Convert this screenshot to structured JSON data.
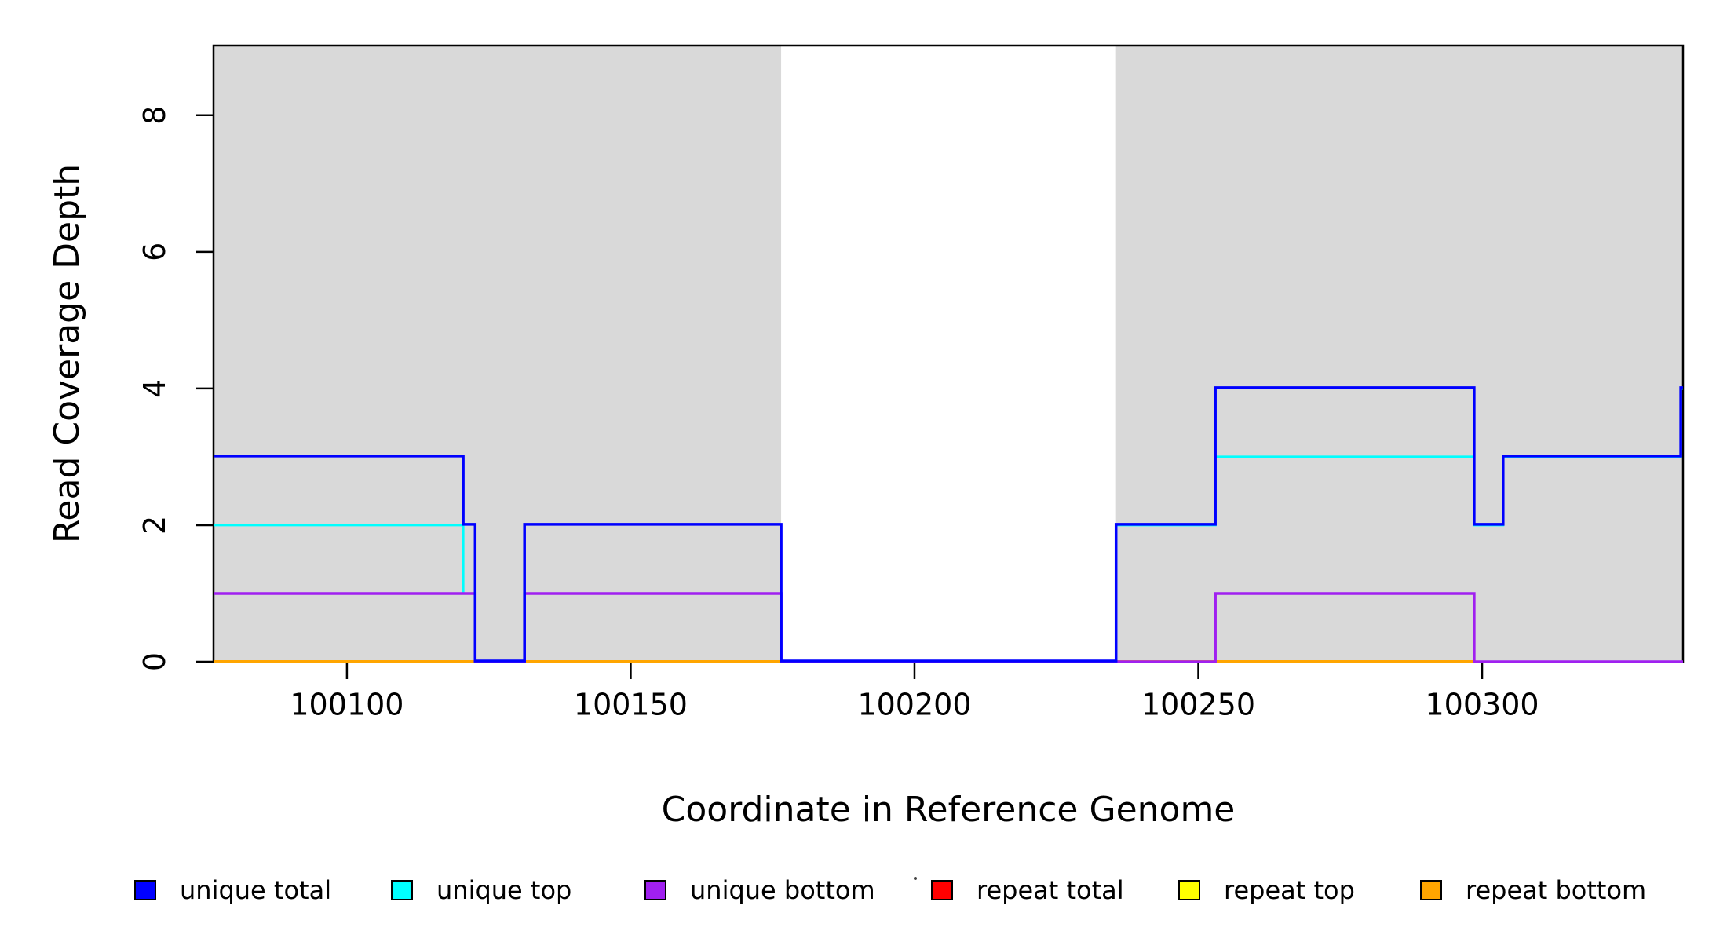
{
  "figure": {
    "background": "#FFFFFF",
    "kind": "R-style read coverage step plot"
  },
  "chart_data": {
    "type": "line",
    "subtype": "step",
    "title": "",
    "xlabel": "Coordinate in Reference Genome",
    "ylabel": "Read Coverage Depth",
    "x_range": [
      100076.5,
      100335.4
    ],
    "y_range": [
      0,
      9.02
    ],
    "grid": false,
    "x_ticks": [
      100100,
      100150,
      100200,
      100250,
      100300
    ],
    "x_tick_labels": [
      "100100",
      "100150",
      "100200",
      "100250",
      "100300"
    ],
    "y_ticks": [
      0,
      2,
      4,
      6,
      8
    ],
    "y_tick_labels": [
      "0",
      "2",
      "4",
      "6",
      "8"
    ],
    "shaded_color": "#D9D9D9",
    "shaded_regions": [
      {
        "x0": 100076.5,
        "x1": 100176.5
      },
      {
        "x0": 100235.5,
        "x1": 100335.4
      }
    ],
    "series": [
      {
        "name": "repeat total",
        "color": "#FF0000",
        "width": 3,
        "segments": [
          [
            [
              100076.5,
              0
            ],
            [
              100176.5,
              0
            ]
          ],
          [
            [
              100235.5,
              0
            ],
            [
              100298.6,
              0
            ]
          ]
        ]
      },
      {
        "name": "repeat top",
        "color": "#FFFF00",
        "width": 3,
        "segments": [
          [
            [
              100076.5,
              0
            ],
            [
              100176.5,
              0
            ]
          ],
          [
            [
              100235.5,
              0
            ],
            [
              100298.6,
              0
            ]
          ]
        ]
      },
      {
        "name": "repeat bottom",
        "color": "#FFA500",
        "width": 4,
        "segments": [
          [
            [
              100076.5,
              0
            ],
            [
              100176.5,
              0
            ]
          ],
          [
            [
              100235.5,
              0
            ],
            [
              100298.6,
              0
            ]
          ]
        ]
      },
      {
        "name": "unique top",
        "color": "#00FFFF",
        "width": 3,
        "segments": [
          [
            [
              100076.5,
              2
            ],
            [
              100120.5,
              1
            ],
            [
              100122.6,
              0
            ],
            [
              100131.3,
              1
            ],
            [
              100176.5,
              0
            ],
            [
              100235.5,
              2
            ],
            [
              100253,
              3
            ],
            [
              100298.6,
              2
            ],
            [
              100303.7,
              3
            ],
            [
              100335,
              4
            ],
            [
              100335.4,
              4
            ]
          ]
        ]
      },
      {
        "name": "unique bottom",
        "color": "#A020F0",
        "width": 3.5,
        "segments": [
          [
            [
              100076.5,
              1
            ],
            [
              100122.6,
              0
            ],
            [
              100131.3,
              1
            ],
            [
              100176.5,
              0
            ],
            [
              100253,
              1
            ],
            [
              100298.6,
              0
            ],
            [
              100335.4,
              0
            ]
          ]
        ]
      },
      {
        "name": "unique total",
        "color": "#0000FF",
        "width": 3.5,
        "dy": -1,
        "segments": [
          [
            [
              100076.5,
              3
            ],
            [
              100120.5,
              2
            ],
            [
              100122.6,
              0
            ],
            [
              100131.3,
              2
            ],
            [
              100176.5,
              0
            ],
            [
              100235.5,
              2
            ],
            [
              100253,
              4
            ],
            [
              100298.6,
              2
            ],
            [
              100303.7,
              3
            ],
            [
              100335,
              4
            ],
            [
              100335.4,
              4
            ]
          ]
        ]
      }
    ],
    "legend": {
      "position": "bottom",
      "items": [
        {
          "label": "unique total",
          "color": "#0000FF"
        },
        {
          "label": "unique top",
          "color": "#00FFFF"
        },
        {
          "label": "unique bottom",
          "color": "#A020F0"
        },
        {
          "label": "repeat total",
          "color": "#FF0000"
        },
        {
          "label": "repeat top",
          "color": "#FFFF00"
        },
        {
          "label": "repeat bottom",
          "color": "#FFA500"
        }
      ]
    },
    "artifacts": [
      {
        "type": "stray-dot",
        "near": "repeat total legend item"
      }
    ]
  }
}
